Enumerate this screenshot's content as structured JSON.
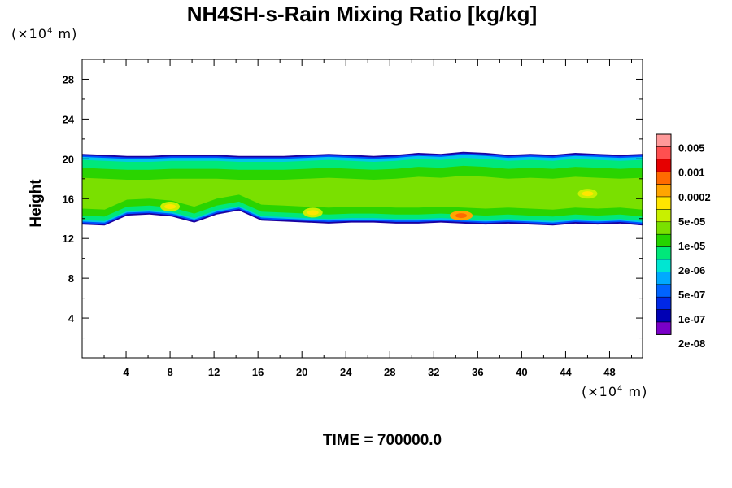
{
  "chart_data": {
    "type": "heatmap",
    "title": "NH4SH-s-Rain Mixing Ratio [kg/kg]",
    "ylabel": "Height",
    "x_unit": "(×10",
    "x_unit_exp": "4",
    "x_unit_tail": " m)",
    "y_unit": "(×10",
    "y_unit_exp": "4",
    "y_unit_tail": " m)",
    "xlim": [
      0,
      51
    ],
    "ylim": [
      0,
      30
    ],
    "x_ticks": [
      "4",
      "8",
      "12",
      "16",
      "20",
      "24",
      "28",
      "32",
      "36",
      "40",
      "44",
      "48"
    ],
    "y_ticks": [
      "4",
      "8",
      "12",
      "16",
      "20",
      "24",
      "28"
    ],
    "colorbar": {
      "labels": [
        "0.005",
        "0.001",
        "0.0002",
        "5e-05",
        "1e-05",
        "2e-06",
        "5e-07",
        "1e-07",
        "2e-08"
      ],
      "colors": [
        "#ff9a9a",
        "#ff5050",
        "#e60000",
        "#ff6a00",
        "#ffa500",
        "#ffe600",
        "#c8f000",
        "#7ae000",
        "#25d400",
        "#00e87a",
        "#00e6d2",
        "#00aaff",
        "#0064ff",
        "#0028e6",
        "#0000b4",
        "#7a00c8"
      ]
    },
    "field": {
      "description_units": "kg/kg",
      "bottom_boundary_m_x1e4": [
        13.4,
        13.3,
        14.3,
        14.4,
        14.2,
        13.6,
        14.4,
        14.8,
        13.8,
        13.7,
        13.6,
        13.5,
        13.6,
        13.6,
        13.5,
        13.5,
        13.6,
        13.5,
        13.4,
        13.5,
        13.4,
        13.3,
        13.5,
        13.4,
        13.5,
        13.3
      ],
      "top_boundary_m_x1e4": [
        20.5,
        20.4,
        20.3,
        20.3,
        20.4,
        20.4,
        20.4,
        20.3,
        20.3,
        20.3,
        20.4,
        20.5,
        20.4,
        20.3,
        20.4,
        20.6,
        20.5,
        20.7,
        20.6,
        20.4,
        20.5,
        20.4,
        20.6,
        20.5,
        20.4,
        20.5
      ],
      "hotspots": [
        {
          "x": 34.5,
          "y": 14.3,
          "level": "0.0002"
        },
        {
          "x": 21.0,
          "y": 14.6,
          "level": "5e-05"
        },
        {
          "x": 8.0,
          "y": 15.2,
          "level": "5e-05"
        },
        {
          "x": 46.0,
          "y": 16.5,
          "level": "5e-05"
        }
      ]
    }
  },
  "footer": {
    "time_label": "TIME = 700000.0"
  }
}
